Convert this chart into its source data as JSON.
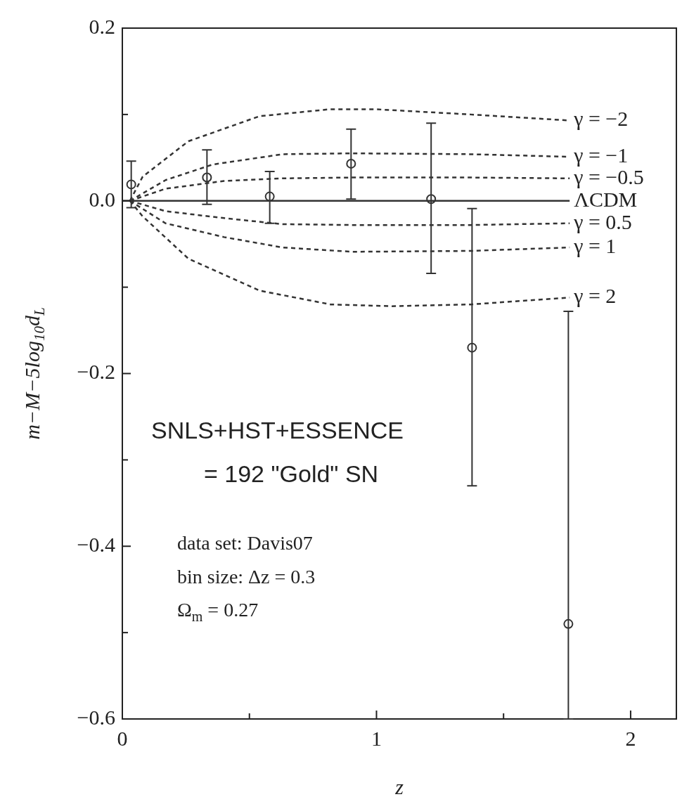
{
  "chart_data": {
    "type": "scatter",
    "xlabel": "z",
    "ylabel": "m−M−5log$_{10}$d$_{L}$",
    "xlim": [
      0,
      2.18
    ],
    "xticks": [
      0,
      {
        "value": 0.5,
        "label": null
      },
      1,
      {
        "value": 1.5,
        "label": null
      },
      2
    ],
    "ylim": [
      -0.6,
      0.2
    ],
    "yticks": [
      {
        "value": 0.2,
        "label": "0.2"
      },
      {
        "value": 0.1,
        "label": null
      },
      {
        "value": 0,
        "label": "0.0"
      },
      {
        "value": -0.1,
        "label": null
      },
      {
        "value": -0.2,
        "label": "−0.2"
      },
      {
        "value": -0.3,
        "label": null
      },
      {
        "value": -0.4,
        "label": "−0.4"
      },
      {
        "value": -0.5,
        "label": null
      },
      {
        "value": -0.6,
        "label": "−0.6"
      }
    ],
    "grid": false,
    "legend": false,
    "series": [
      {
        "type": "scatter",
        "marker": "circle",
        "color": "#333333",
        "x": [
          0.035,
          0.333,
          0.58,
          0.9,
          1.215,
          1.376,
          1.755
        ],
        "values": [
          0.019,
          0.027,
          0.005,
          0.043,
          0.002,
          -0.17,
          -0.49
        ],
        "errors": [
          [
            -0.008,
            0.046
          ],
          [
            -0.004,
            0.059
          ],
          [
            -0.026,
            0.034
          ],
          [
            0.002,
            0.083
          ],
          [
            -0.084,
            0.09
          ],
          [
            -0.33,
            -0.009
          ],
          [
            -0.6,
            -0.128
          ]
        ]
      },
      {
        "type": "line",
        "name": "γ = −2",
        "marker": "none",
        "line_style": "dashed",
        "color": "#333333",
        "x": [
          0.03,
          0.08,
          0.26,
          0.54,
          0.815,
          1.0,
          1.37,
          1.76
        ],
        "values": [
          0,
          0.028,
          0.069,
          0.098,
          0.106,
          0.106,
          0.1,
          0.093
        ]
      },
      {
        "type": "line",
        "name": "γ = −1",
        "marker": "none",
        "line_style": "dashed",
        "color": "#333333",
        "x": [
          0.03,
          0.17,
          0.355,
          0.63,
          0.905,
          1.37,
          1.76
        ],
        "values": [
          0,
          0.024,
          0.042,
          0.054,
          0.055,
          0.054,
          0.051
        ]
      },
      {
        "type": "line",
        "name": "γ = −0.5",
        "marker": "none",
        "line_style": "dashed",
        "color": "#333333",
        "x": [
          0.03,
          0.17,
          0.4,
          0.63,
          0.905,
          1.37,
          1.76
        ],
        "values": [
          0,
          0.014,
          0.023,
          0.026,
          0.027,
          0.027,
          0.026
        ]
      },
      {
        "type": "line",
        "name": "ΛCDM",
        "marker": "none",
        "line_style": "solid",
        "color": "#333333",
        "x": [
          0,
          1.76
        ],
        "values": [
          0,
          0
        ]
      },
      {
        "type": "line",
        "name": "γ = 0.5",
        "marker": "none",
        "line_style": "dashed",
        "color": "#333333",
        "x": [
          0.03,
          0.17,
          0.4,
          0.63,
          0.905,
          1.37,
          1.76
        ],
        "values": [
          0,
          -0.012,
          -0.02,
          -0.027,
          -0.028,
          -0.028,
          -0.026
        ]
      },
      {
        "type": "line",
        "name": "γ = 1",
        "marker": "none",
        "line_style": "dashed",
        "color": "#333333",
        "x": [
          0.03,
          0.17,
          0.4,
          0.63,
          0.905,
          1.37,
          1.76
        ],
        "values": [
          0,
          -0.026,
          -0.042,
          -0.054,
          -0.059,
          -0.058,
          -0.054
        ]
      },
      {
        "type": "line",
        "name": "γ = 2",
        "marker": "none",
        "line_style": "dashed",
        "color": "#333333",
        "x": [
          0.03,
          0.08,
          0.26,
          0.54,
          0.82,
          1.06,
          1.37,
          1.76
        ],
        "values": [
          0,
          -0.018,
          -0.067,
          -0.104,
          -0.12,
          -0.122,
          -0.12,
          -0.112
        ]
      }
    ],
    "annotations": [
      "SNLS+HST+ESSENCE",
      "= 192 \"Gold\" SN",
      "data set: Davis07",
      "bin size: Δz = 0.3",
      "Ω$_{m}$ = 0.27"
    ]
  }
}
